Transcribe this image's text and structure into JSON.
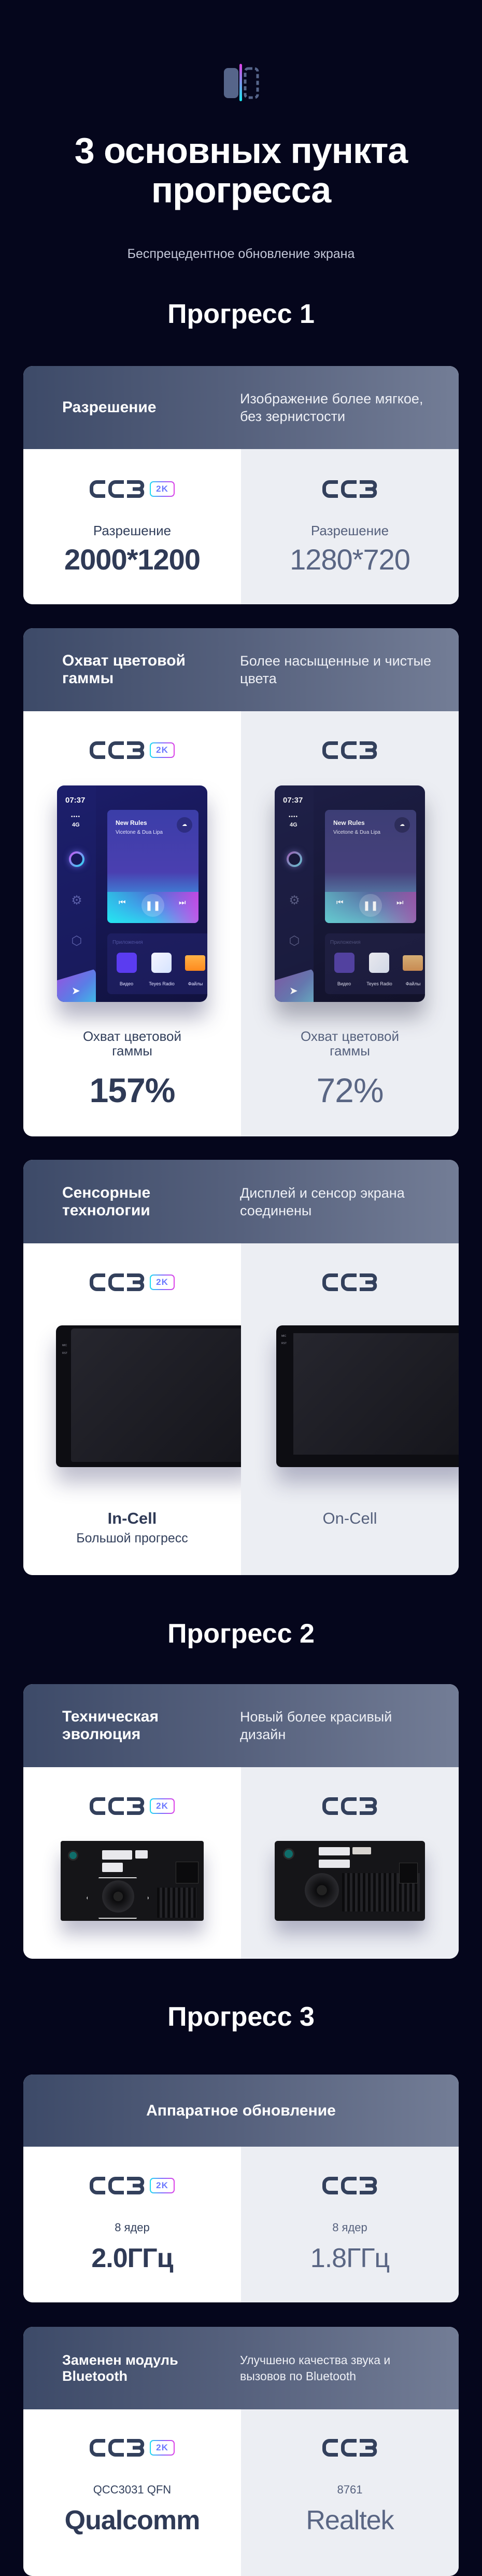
{
  "hero": {
    "icon": "compare-screen-icon",
    "title_line1": "3 основных пункта",
    "title_line2": "прогресса",
    "subtitle": "Беспрецедентное обновление экрана"
  },
  "brand": {
    "logo": "CC3",
    "badge": "2K",
    "accent_from": "#18e0f0",
    "accent_to": "#e040e6"
  },
  "colors": {
    "background": "#05061c",
    "header_from": "#3d4a68",
    "header_to": "#737d96",
    "new_bg": "#ffffff",
    "old_bg": "#eceef3",
    "text_dark": "#2f3a56"
  },
  "sections": [
    {
      "title": "Прогресс 1"
    },
    {
      "title": "Прогресс 2"
    },
    {
      "title": "Прогресс 3"
    }
  ],
  "cards": {
    "resolution": {
      "title": "Разрешение",
      "desc": "Изображение более мягкое, без зернистости",
      "new": {
        "label": "Разрешение",
        "value": "2000*1200"
      },
      "old": {
        "label": "Разрешение",
        "value": "1280*720"
      }
    },
    "gamut": {
      "title": "Охват цветовой гаммы",
      "desc": "Более насыщенные и чистые цвета",
      "new": {
        "label_line1": "Охват цветовой",
        "label_line2": "гаммы",
        "value": "157%"
      },
      "old": {
        "label_line1": "Охват цветовой",
        "label_line2": "гаммы",
        "value": "72%"
      }
    },
    "touch": {
      "title": "Сенсорные технологии",
      "desc": "Дисплей и сенсор экрана соединены",
      "new": {
        "value": "In-Cell",
        "sub": "Большой прогресс"
      },
      "old": {
        "value": "On-Cell"
      },
      "monitor_tags": [
        "MIC",
        "RST"
      ]
    },
    "design": {
      "title": "Техническая эволюция",
      "desc": "Новый более красивый дизайн"
    },
    "hardware": {
      "title": "Аппаратное обновление",
      "new": {
        "label": "8 ядер",
        "value": "2.0ГГц"
      },
      "old": {
        "label": "8 ядер",
        "value": "1.8ГГц"
      }
    },
    "bluetooth": {
      "title": "Заменен модуль Bluetooth",
      "desc": "Улучшено качества звука и вызовов по Bluetooth",
      "new": {
        "label": "QCC3031 QFN",
        "value": "Qualcomm"
      },
      "old": {
        "label": "8761",
        "value": "Realtek"
      }
    }
  },
  "phone": {
    "time": "07:37",
    "signal": "••••",
    "network": "4G",
    "track_title": "New Rules",
    "track_artist": "Vicetone & Dua Lipa",
    "apps_title": "Приложения",
    "apps": [
      {
        "label": "Видео",
        "icon": "video-app-icon"
      },
      {
        "label": "Teyes Radio",
        "icon": "radio-app-icon"
      },
      {
        "label": "Файлы",
        "icon": "folder-app-icon"
      }
    ]
  }
}
